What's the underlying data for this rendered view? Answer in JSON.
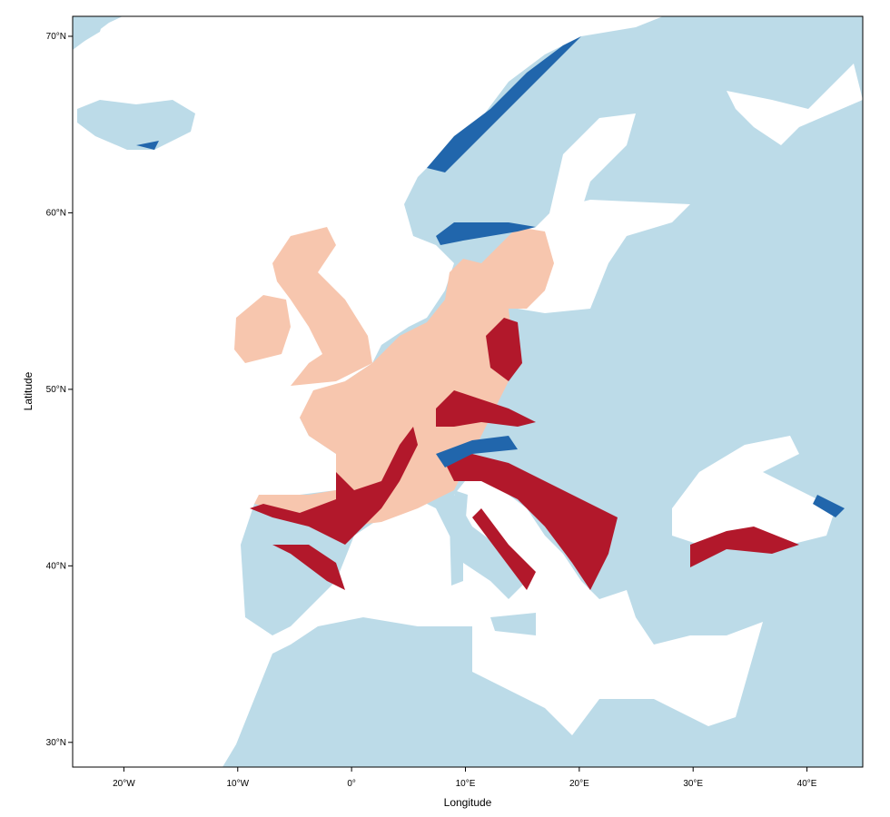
{
  "chart_data": {
    "type": "map",
    "x_label": "Longitude",
    "y_label": "Latitude",
    "xlim": [
      -24.5,
      44.9
    ],
    "ylim": [
      28.6,
      71.13
    ],
    "xticks": [
      {
        "value": -20,
        "label": "20°W"
      },
      {
        "value": -10,
        "label": "10°W"
      },
      {
        "value": 0,
        "label": "0°"
      },
      {
        "value": 10,
        "label": "10°E"
      },
      {
        "value": 20,
        "label": "20°E"
      },
      {
        "value": 30,
        "label": "30°E"
      },
      {
        "value": 40,
        "label": "40°E"
      }
    ],
    "yticks": [
      {
        "value": 30,
        "label": "30°N"
      },
      {
        "value": 40,
        "label": "40°N"
      },
      {
        "value": 50,
        "label": "50°N"
      },
      {
        "value": 60,
        "label": "60°N"
      },
      {
        "value": 70,
        "label": "70°N"
      }
    ]
  }
}
